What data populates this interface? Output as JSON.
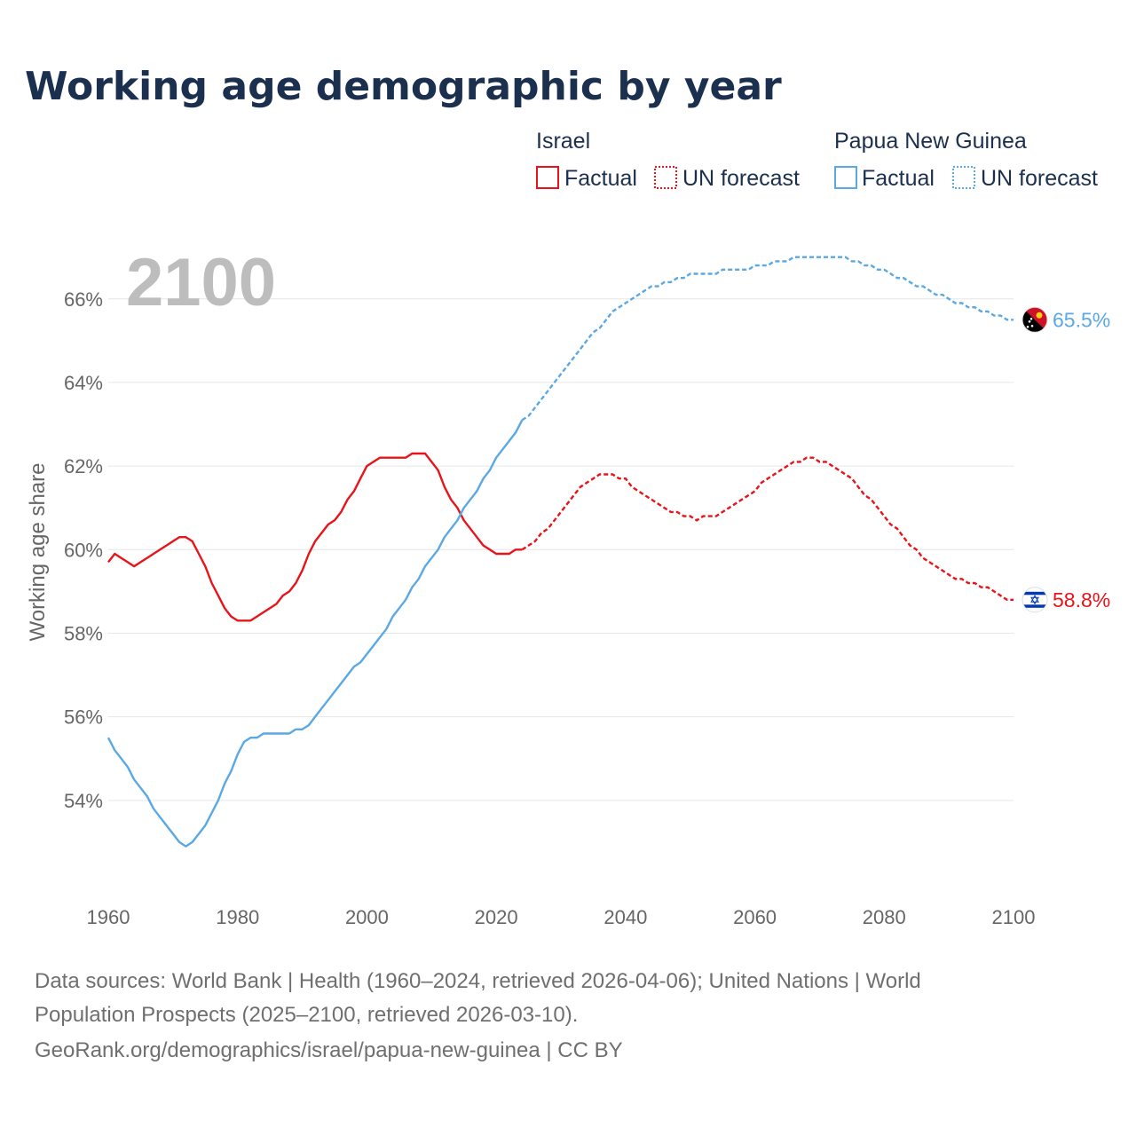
{
  "title": "Working age demographic by year",
  "year_label": "2100",
  "colors": {
    "israel": "#e8141a",
    "png": "#5aa8e4"
  },
  "legend": {
    "israel": {
      "name": "Israel",
      "factual": "Factual",
      "forecast": "UN forecast"
    },
    "png": {
      "name": "Papua New Guinea",
      "factual": "Factual",
      "forecast": "UN forecast"
    }
  },
  "footer": {
    "line1": "Data sources: World Bank | Health (1960–2024, retrieved 2026-04-06); United Nations | World",
    "line2": "Population Prospects (2025–2100, retrieved 2026-03-10).",
    "line3": "GeoRank.org/demographics/israel/papua-new-guinea | CC BY"
  },
  "chart_data": {
    "type": "line",
    "title": "Working age demographic by year",
    "xlabel": "",
    "ylabel": "Working age share",
    "xlim": [
      1960,
      2100
    ],
    "ylim": [
      52,
      67.8
    ],
    "x_ticks": [
      "1960",
      "1980",
      "2000",
      "2020",
      "2040",
      "2060",
      "2080",
      "2100"
    ],
    "y_ticks": [
      "54%",
      "56%",
      "58%",
      "60%",
      "62%",
      "64%",
      "66%"
    ],
    "grid": true,
    "series": [
      {
        "name": "Israel",
        "key": "israel",
        "factual_end": 2024,
        "end_label": "58.8%",
        "points": [
          [
            1960,
            59.7
          ],
          [
            1961,
            59.9
          ],
          [
            1962,
            59.8
          ],
          [
            1963,
            59.7
          ],
          [
            1964,
            59.6
          ],
          [
            1965,
            59.7
          ],
          [
            1966,
            59.8
          ],
          [
            1967,
            59.9
          ],
          [
            1968,
            60.0
          ],
          [
            1969,
            60.1
          ],
          [
            1970,
            60.2
          ],
          [
            1971,
            60.3
          ],
          [
            1972,
            60.3
          ],
          [
            1973,
            60.2
          ],
          [
            1974,
            59.9
          ],
          [
            1975,
            59.6
          ],
          [
            1976,
            59.2
          ],
          [
            1977,
            58.9
          ],
          [
            1978,
            58.6
          ],
          [
            1979,
            58.4
          ],
          [
            1980,
            58.3
          ],
          [
            1981,
            58.3
          ],
          [
            1982,
            58.3
          ],
          [
            1983,
            58.4
          ],
          [
            1984,
            58.5
          ],
          [
            1985,
            58.6
          ],
          [
            1986,
            58.7
          ],
          [
            1987,
            58.9
          ],
          [
            1988,
            59.0
          ],
          [
            1989,
            59.2
          ],
          [
            1990,
            59.5
          ],
          [
            1991,
            59.9
          ],
          [
            1992,
            60.2
          ],
          [
            1993,
            60.4
          ],
          [
            1994,
            60.6
          ],
          [
            1995,
            60.7
          ],
          [
            1996,
            60.9
          ],
          [
            1997,
            61.2
          ],
          [
            1998,
            61.4
          ],
          [
            1999,
            61.7
          ],
          [
            2000,
            62.0
          ],
          [
            2001,
            62.1
          ],
          [
            2002,
            62.2
          ],
          [
            2003,
            62.2
          ],
          [
            2004,
            62.2
          ],
          [
            2005,
            62.2
          ],
          [
            2006,
            62.2
          ],
          [
            2007,
            62.3
          ],
          [
            2008,
            62.3
          ],
          [
            2009,
            62.3
          ],
          [
            2010,
            62.1
          ],
          [
            2011,
            61.9
          ],
          [
            2012,
            61.5
          ],
          [
            2013,
            61.2
          ],
          [
            2014,
            61.0
          ],
          [
            2015,
            60.7
          ],
          [
            2016,
            60.5
          ],
          [
            2017,
            60.3
          ],
          [
            2018,
            60.1
          ],
          [
            2019,
            60.0
          ],
          [
            2020,
            59.9
          ],
          [
            2021,
            59.9
          ],
          [
            2022,
            59.9
          ],
          [
            2023,
            60.0
          ],
          [
            2024,
            60.0
          ],
          [
            2025,
            60.1
          ],
          [
            2026,
            60.2
          ],
          [
            2027,
            60.4
          ],
          [
            2028,
            60.5
          ],
          [
            2029,
            60.7
          ],
          [
            2030,
            60.9
          ],
          [
            2031,
            61.1
          ],
          [
            2032,
            61.3
          ],
          [
            2033,
            61.5
          ],
          [
            2034,
            61.6
          ],
          [
            2035,
            61.7
          ],
          [
            2036,
            61.8
          ],
          [
            2037,
            61.8
          ],
          [
            2038,
            61.8
          ],
          [
            2039,
            61.7
          ],
          [
            2040,
            61.7
          ],
          [
            2041,
            61.5
          ],
          [
            2042,
            61.4
          ],
          [
            2043,
            61.3
          ],
          [
            2044,
            61.2
          ],
          [
            2045,
            61.1
          ],
          [
            2046,
            61.0
          ],
          [
            2047,
            60.9
          ],
          [
            2048,
            60.9
          ],
          [
            2049,
            60.8
          ],
          [
            2050,
            60.8
          ],
          [
            2051,
            60.7
          ],
          [
            2052,
            60.8
          ],
          [
            2053,
            60.8
          ],
          [
            2054,
            60.8
          ],
          [
            2055,
            60.9
          ],
          [
            2056,
            61.0
          ],
          [
            2057,
            61.1
          ],
          [
            2058,
            61.2
          ],
          [
            2059,
            61.3
          ],
          [
            2060,
            61.4
          ],
          [
            2061,
            61.6
          ],
          [
            2062,
            61.7
          ],
          [
            2063,
            61.8
          ],
          [
            2064,
            61.9
          ],
          [
            2065,
            62.0
          ],
          [
            2066,
            62.1
          ],
          [
            2067,
            62.1
          ],
          [
            2068,
            62.2
          ],
          [
            2069,
            62.2
          ],
          [
            2070,
            62.1
          ],
          [
            2071,
            62.1
          ],
          [
            2072,
            62.0
          ],
          [
            2073,
            61.9
          ],
          [
            2074,
            61.8
          ],
          [
            2075,
            61.7
          ],
          [
            2076,
            61.5
          ],
          [
            2077,
            61.3
          ],
          [
            2078,
            61.2
          ],
          [
            2079,
            61.0
          ],
          [
            2080,
            60.8
          ],
          [
            2081,
            60.6
          ],
          [
            2082,
            60.5
          ],
          [
            2083,
            60.3
          ],
          [
            2084,
            60.1
          ],
          [
            2085,
            60.0
          ],
          [
            2086,
            59.8
          ],
          [
            2087,
            59.7
          ],
          [
            2088,
            59.6
          ],
          [
            2089,
            59.5
          ],
          [
            2090,
            59.4
          ],
          [
            2091,
            59.3
          ],
          [
            2092,
            59.3
          ],
          [
            2093,
            59.2
          ],
          [
            2094,
            59.2
          ],
          [
            2095,
            59.1
          ],
          [
            2096,
            59.1
          ],
          [
            2097,
            59.0
          ],
          [
            2098,
            58.9
          ],
          [
            2099,
            58.8
          ],
          [
            2100,
            58.8
          ]
        ]
      },
      {
        "name": "Papua New Guinea",
        "key": "png",
        "factual_end": 2024,
        "end_label": "65.5%",
        "points": [
          [
            1960,
            55.5
          ],
          [
            1961,
            55.2
          ],
          [
            1962,
            55.0
          ],
          [
            1963,
            54.8
          ],
          [
            1964,
            54.5
          ],
          [
            1965,
            54.3
          ],
          [
            1966,
            54.1
          ],
          [
            1967,
            53.8
          ],
          [
            1968,
            53.6
          ],
          [
            1969,
            53.4
          ],
          [
            1970,
            53.2
          ],
          [
            1971,
            53.0
          ],
          [
            1972,
            52.9
          ],
          [
            1973,
            53.0
          ],
          [
            1974,
            53.2
          ],
          [
            1975,
            53.4
          ],
          [
            1976,
            53.7
          ],
          [
            1977,
            54.0
          ],
          [
            1978,
            54.4
          ],
          [
            1979,
            54.7
          ],
          [
            1980,
            55.1
          ],
          [
            1981,
            55.4
          ],
          [
            1982,
            55.5
          ],
          [
            1983,
            55.5
          ],
          [
            1984,
            55.6
          ],
          [
            1985,
            55.6
          ],
          [
            1986,
            55.6
          ],
          [
            1987,
            55.6
          ],
          [
            1988,
            55.6
          ],
          [
            1989,
            55.7
          ],
          [
            1990,
            55.7
          ],
          [
            1991,
            55.8
          ],
          [
            1992,
            56.0
          ],
          [
            1993,
            56.2
          ],
          [
            1994,
            56.4
          ],
          [
            1995,
            56.6
          ],
          [
            1996,
            56.8
          ],
          [
            1997,
            57.0
          ],
          [
            1998,
            57.2
          ],
          [
            1999,
            57.3
          ],
          [
            2000,
            57.5
          ],
          [
            2001,
            57.7
          ],
          [
            2002,
            57.9
          ],
          [
            2003,
            58.1
          ],
          [
            2004,
            58.4
          ],
          [
            2005,
            58.6
          ],
          [
            2006,
            58.8
          ],
          [
            2007,
            59.1
          ],
          [
            2008,
            59.3
          ],
          [
            2009,
            59.6
          ],
          [
            2010,
            59.8
          ],
          [
            2011,
            60.0
          ],
          [
            2012,
            60.3
          ],
          [
            2013,
            60.5
          ],
          [
            2014,
            60.7
          ],
          [
            2015,
            61.0
          ],
          [
            2016,
            61.2
          ],
          [
            2017,
            61.4
          ],
          [
            2018,
            61.7
          ],
          [
            2019,
            61.9
          ],
          [
            2020,
            62.2
          ],
          [
            2021,
            62.4
          ],
          [
            2022,
            62.6
          ],
          [
            2023,
            62.8
          ],
          [
            2024,
            63.1
          ],
          [
            2025,
            63.2
          ],
          [
            2026,
            63.4
          ],
          [
            2027,
            63.6
          ],
          [
            2028,
            63.8
          ],
          [
            2029,
            64.0
          ],
          [
            2030,
            64.2
          ],
          [
            2031,
            64.4
          ],
          [
            2032,
            64.6
          ],
          [
            2033,
            64.8
          ],
          [
            2034,
            65.0
          ],
          [
            2035,
            65.2
          ],
          [
            2036,
            65.3
          ],
          [
            2037,
            65.5
          ],
          [
            2038,
            65.7
          ],
          [
            2039,
            65.8
          ],
          [
            2040,
            65.9
          ],
          [
            2041,
            66.0
          ],
          [
            2042,
            66.1
          ],
          [
            2043,
            66.2
          ],
          [
            2044,
            66.3
          ],
          [
            2045,
            66.3
          ],
          [
            2046,
            66.4
          ],
          [
            2047,
            66.4
          ],
          [
            2048,
            66.5
          ],
          [
            2049,
            66.5
          ],
          [
            2050,
            66.6
          ],
          [
            2051,
            66.6
          ],
          [
            2052,
            66.6
          ],
          [
            2053,
            66.6
          ],
          [
            2054,
            66.6
          ],
          [
            2055,
            66.7
          ],
          [
            2056,
            66.7
          ],
          [
            2057,
            66.7
          ],
          [
            2058,
            66.7
          ],
          [
            2059,
            66.7
          ],
          [
            2060,
            66.8
          ],
          [
            2061,
            66.8
          ],
          [
            2062,
            66.8
          ],
          [
            2063,
            66.9
          ],
          [
            2064,
            66.9
          ],
          [
            2065,
            66.9
          ],
          [
            2066,
            67.0
          ],
          [
            2067,
            67.0
          ],
          [
            2068,
            67.0
          ],
          [
            2069,
            67.0
          ],
          [
            2070,
            67.0
          ],
          [
            2071,
            67.0
          ],
          [
            2072,
            67.0
          ],
          [
            2073,
            67.0
          ],
          [
            2074,
            67.0
          ],
          [
            2075,
            66.9
          ],
          [
            2076,
            66.9
          ],
          [
            2077,
            66.8
          ],
          [
            2078,
            66.8
          ],
          [
            2079,
            66.7
          ],
          [
            2080,
            66.7
          ],
          [
            2081,
            66.6
          ],
          [
            2082,
            66.5
          ],
          [
            2083,
            66.5
          ],
          [
            2084,
            66.4
          ],
          [
            2085,
            66.3
          ],
          [
            2086,
            66.3
          ],
          [
            2087,
            66.2
          ],
          [
            2088,
            66.1
          ],
          [
            2089,
            66.1
          ],
          [
            2090,
            66.0
          ],
          [
            2091,
            65.9
          ],
          [
            2092,
            65.9
          ],
          [
            2093,
            65.8
          ],
          [
            2094,
            65.8
          ],
          [
            2095,
            65.7
          ],
          [
            2096,
            65.7
          ],
          [
            2097,
            65.6
          ],
          [
            2098,
            65.6
          ],
          [
            2099,
            65.5
          ],
          [
            2100,
            65.5
          ]
        ]
      }
    ]
  }
}
